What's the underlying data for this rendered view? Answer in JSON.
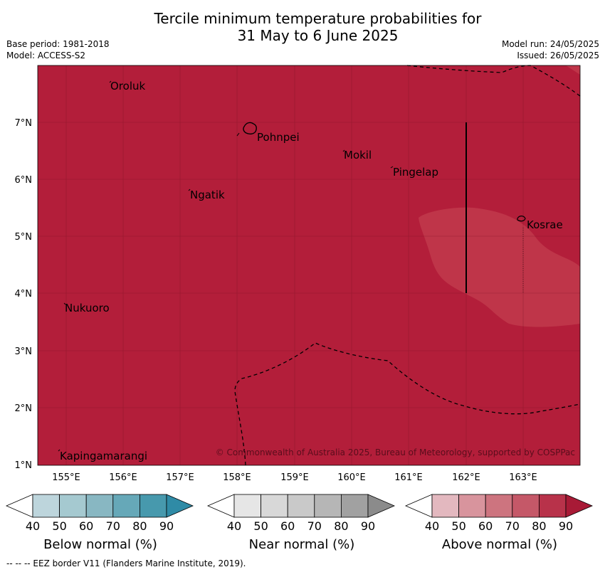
{
  "title": {
    "line1": "Tercile minimum temperature probabilities for",
    "line2": "31 May to 6 June 2025"
  },
  "meta": {
    "base_period": "Base period: 1981-2018",
    "model": "Model: ACCESS-S2",
    "model_run": "Model run: 24/05/2025",
    "issued": "Issued: 26/05/2025"
  },
  "map": {
    "lon_ticks": [
      "155°E",
      "156°E",
      "157°E",
      "158°E",
      "159°E",
      "160°E",
      "161°E",
      "162°E",
      "163°E"
    ],
    "lat_ticks": [
      "7°N",
      "6°N",
      "5°N",
      "4°N",
      "3°N",
      "2°N",
      "1°N"
    ],
    "places": [
      {
        "name": "Oroluk"
      },
      {
        "name": "Pohnpei"
      },
      {
        "name": "Mokil"
      },
      {
        "name": "Pingelap"
      },
      {
        "name": "Ngatik"
      },
      {
        "name": "Kosrae"
      },
      {
        "name": "Nukuoro"
      },
      {
        "name": "Kapingamarangi"
      }
    ],
    "copyright": "© Commonwealth of Australia 2025, Bureau of Meteorology, supported by COSPPac",
    "colors": {
      "above_80_90": "#b31e3a",
      "above_70_80": "#bf3549",
      "graticule": "#7a1426"
    }
  },
  "legends": [
    {
      "label": "Below normal (%)",
      "ticks": [
        "40",
        "50",
        "60",
        "70",
        "80",
        "90"
      ],
      "colors": [
        "#ffffff",
        "#bdd5dc",
        "#a5c9d0",
        "#88b7c2",
        "#66a8b8",
        "#4799ad",
        "#2f8ba6"
      ]
    },
    {
      "label": "Near normal (%)",
      "ticks": [
        "40",
        "50",
        "60",
        "70",
        "80",
        "90"
      ],
      "colors": [
        "#ffffff",
        "#e6e6e6",
        "#d8d8d8",
        "#c9c9c9",
        "#b6b6b6",
        "#a1a1a1",
        "#8b8b8b"
      ]
    },
    {
      "label": "Above normal (%)",
      "ticks": [
        "40",
        "50",
        "60",
        "70",
        "80",
        "90"
      ],
      "colors": [
        "#ffffff",
        "#e3b8bf",
        "#d8949d",
        "#cd747f",
        "#c55868",
        "#b8324a",
        "#a81a36"
      ]
    }
  ],
  "footnote": "--  --  -- EEZ border V11 (Flanders Marine Institute, 2019)."
}
